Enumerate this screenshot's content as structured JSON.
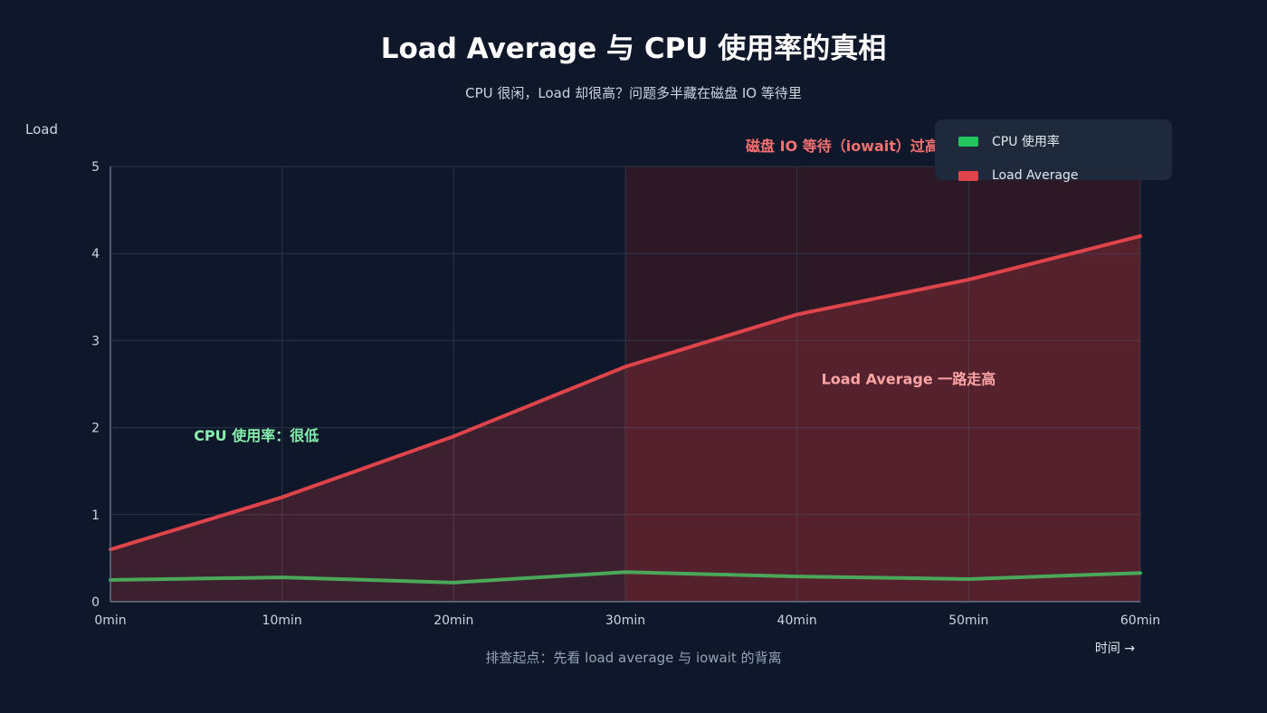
{
  "header": {
    "title": "Load  Average 与 CPU 使用率的真相",
    "subtitle": "CPU 很闲，Load 却很高？问题多半藏在磁盘 IO 等待里"
  },
  "footer": {
    "note": "排查起点：先看 load  average 与 iowait 的背离"
  },
  "colors": {
    "background": "#0f172a",
    "cpu": "#22c55e",
    "load": "#e0444b",
    "highlight_label": "#f87171",
    "cpu_annotation": "#86efac",
    "load_annotation": "#fca5a5"
  },
  "legend": {
    "items": [
      {
        "label": "CPU 使用率",
        "color": "#22c55e"
      },
      {
        "label": "Load Average",
        "color": "#e0444b"
      }
    ]
  },
  "chart_data": {
    "type": "line",
    "x": [
      0,
      10,
      20,
      30,
      40,
      50,
      60
    ],
    "x_tick_labels": [
      "0min",
      "10min",
      "20min",
      "30min",
      "40min",
      "50min",
      "60min"
    ],
    "xlabel": "时间 →",
    "ylabel": "Load",
    "xlim": [
      0,
      60
    ],
    "ylim": [
      0,
      5
    ],
    "y_ticks": [
      0,
      1,
      2,
      3,
      4,
      5
    ],
    "grid": true,
    "legend_position": "top-right",
    "series": [
      {
        "name": "CPU 使用率",
        "values": [
          0.25,
          0.28,
          0.22,
          0.34,
          0.29,
          0.26,
          0.33
        ],
        "color": "#22c55e",
        "fill": false
      },
      {
        "name": "Load Average",
        "values": [
          0.6,
          1.2,
          1.9,
          2.7,
          3.3,
          3.7,
          4.2
        ],
        "color": "#e0444b",
        "fill": true
      }
    ],
    "highlight_region": {
      "x_start": 30,
      "x_end": 60,
      "label": "磁盘 IO 等待（iowait）过高"
    },
    "annotations": [
      {
        "text": "CPU 使用率：很低",
        "x": 8.5,
        "y": 1.85,
        "series": "CPU 使用率"
      },
      {
        "text": "Load  Average 一路走高",
        "x": 46.5,
        "y": 2.5,
        "series": "Load Average"
      }
    ]
  }
}
